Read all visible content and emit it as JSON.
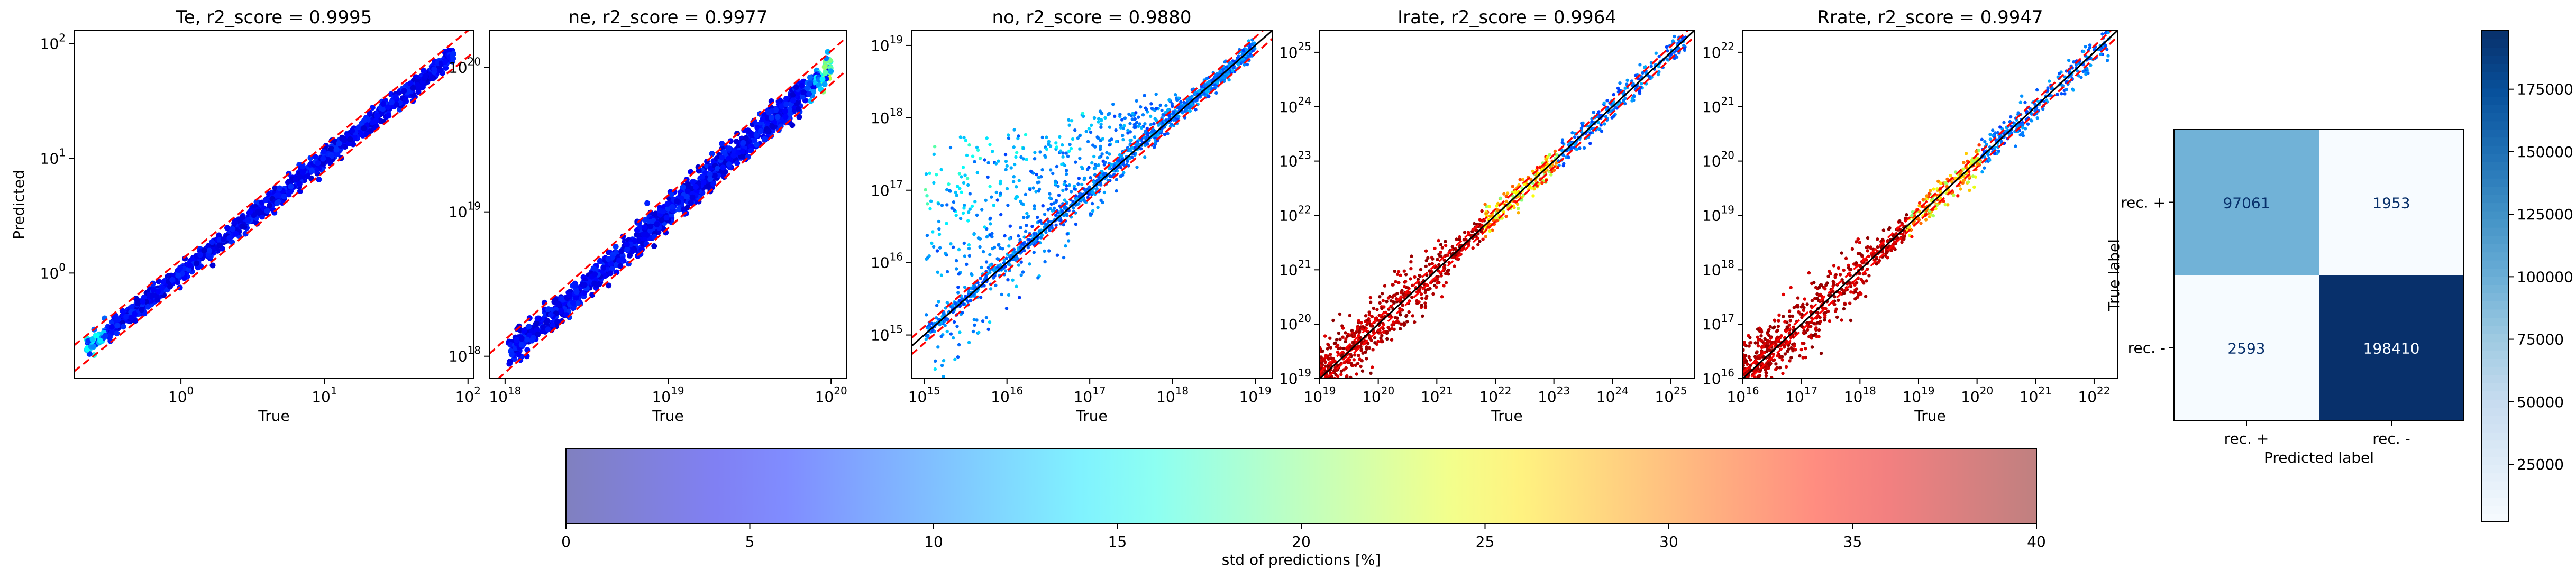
{
  "chart_data": [
    {
      "type": "scatter",
      "title": "Te, r2_score = 0.9995",
      "xlabel": "True",
      "ylabel": "Predicted",
      "xscale": "log",
      "yscale": "log",
      "xlim": [
        0.18,
        110
      ],
      "ylim": [
        0.12,
        130
      ],
      "xticks": [
        {
          "v": 1,
          "m": "0"
        },
        {
          "v": 10,
          "m": "1"
        },
        {
          "v": 100,
          "m": "2"
        }
      ],
      "yticks": [
        {
          "v": 1,
          "m": "0"
        },
        {
          "v": 10,
          "m": "1"
        },
        {
          "v": 100,
          "m": "2"
        }
      ],
      "data_range": [
        0.22,
        80
      ],
      "spread": 0.04,
      "color_profile": "low",
      "bands": {
        "factor": 1.3,
        "color": "#ff0000"
      },
      "identity_line": false,
      "grid": false
    },
    {
      "type": "scatter",
      "title": "ne, r2_score = 0.9977",
      "xlabel": "True",
      "ylabel": "",
      "xscale": "log",
      "yscale": "log",
      "xlim": [
        8e+17,
        1.25e+20
      ],
      "ylim": [
        7e+17,
        1.8e+20
      ],
      "xticks": [
        {
          "v": 1e+18,
          "m": "18"
        },
        {
          "v": 1e+19,
          "m": "19"
        },
        {
          "v": 1e+20,
          "m": "20"
        }
      ],
      "yticks": [
        {
          "v": 1e+18,
          "m": "18"
        },
        {
          "v": 1e+19,
          "m": "19"
        },
        {
          "v": 1e+20,
          "m": "20"
        }
      ],
      "data_range": [
        1.05e+18,
        1e+20
      ],
      "spread": 0.05,
      "color_profile": "low_hi_end",
      "bands": {
        "factor": 1.3,
        "color": "#ff0000"
      },
      "identity_line": false,
      "grid": false
    },
    {
      "type": "scatter",
      "title": "no, r2_score = 0.9880",
      "xlabel": "True",
      "ylabel": "",
      "xscale": "log",
      "yscale": "log",
      "xlim": [
        700000000000000.0,
        1.6e+19
      ],
      "ylim": [
        250000000000000.0,
        1.6e+19
      ],
      "xticks": [
        {
          "v": 1000000000000000.0,
          "m": "15"
        },
        {
          "v": 1e+16,
          "m": "16"
        },
        {
          "v": 1e+17,
          "m": "17"
        },
        {
          "v": 1e+18,
          "m": "18"
        },
        {
          "v": 1e+19,
          "m": "19"
        }
      ],
      "yticks": [
        {
          "v": 1000000000000000.0,
          "m": "15"
        },
        {
          "v": 1e+16,
          "m": "16"
        },
        {
          "v": 1e+17,
          "m": "17"
        },
        {
          "v": 1e+18,
          "m": "18"
        },
        {
          "v": 1e+19,
          "m": "19"
        }
      ],
      "data_range": [
        1000000000000000.0,
        1e+19
      ],
      "spread": 0.15,
      "color_profile": "mid",
      "bands": {
        "factor": 1.3,
        "color": "#ff0000"
      },
      "identity_line": true,
      "grid": false
    },
    {
      "type": "scatter",
      "title": "Irate, r2_score = 0.9964",
      "xlabel": "True",
      "ylabel": "",
      "xscale": "log",
      "yscale": "log",
      "xlim": [
        1e+19,
        2.5e+25
      ],
      "ylim": [
        1e+19,
        2.5e+25
      ],
      "xticks": [
        {
          "v": 1e+19,
          "m": "19"
        },
        {
          "v": 1e+20,
          "m": "20"
        },
        {
          "v": 1e+21,
          "m": "21"
        },
        {
          "v": 1e+22,
          "m": "22"
        },
        {
          "v": 1e+23,
          "m": "23"
        },
        {
          "v": 1e+24,
          "m": "24"
        },
        {
          "v": 1e+25,
          "m": "25"
        }
      ],
      "yticks": [
        {
          "v": 1e+19,
          "m": "19"
        },
        {
          "v": 1e+20,
          "m": "20"
        },
        {
          "v": 1e+21,
          "m": "21"
        },
        {
          "v": 1e+22,
          "m": "22"
        },
        {
          "v": 1e+23,
          "m": "23"
        },
        {
          "v": 1e+24,
          "m": "24"
        },
        {
          "v": 1e+25,
          "m": "25"
        }
      ],
      "data_range": [
        1e+19,
        1.8e+25
      ],
      "spread": 0.12,
      "color_profile": "high_low",
      "bands": {
        "factor": 1.3,
        "color": "#ff0000"
      },
      "identity_line": true,
      "grid": false
    },
    {
      "type": "scatter",
      "title": "Rrate, r2_score = 0.9947",
      "xlabel": "True",
      "ylabel": "",
      "xscale": "log",
      "yscale": "log",
      "xlim": [
        1e+16,
        2.5e+22
      ],
      "ylim": [
        1e+16,
        2.5e+22
      ],
      "xticks": [
        {
          "v": 1e+16,
          "m": "16"
        },
        {
          "v": 1e+17,
          "m": "17"
        },
        {
          "v": 1e+18,
          "m": "18"
        },
        {
          "v": 1e+19,
          "m": "19"
        },
        {
          "v": 1e+20,
          "m": "20"
        },
        {
          "v": 1e+21,
          "m": "21"
        },
        {
          "v": 1e+22,
          "m": "22"
        }
      ],
      "yticks": [
        {
          "v": 1e+16,
          "m": "16"
        },
        {
          "v": 1e+17,
          "m": "17"
        },
        {
          "v": 1e+18,
          "m": "18"
        },
        {
          "v": 1e+19,
          "m": "19"
        },
        {
          "v": 1e+20,
          "m": "20"
        },
        {
          "v": 1e+21,
          "m": "21"
        },
        {
          "v": 1e+22,
          "m": "22"
        }
      ],
      "data_range": [
        1e+16,
        1.8e+22
      ],
      "spread": 0.14,
      "color_profile": "high_low",
      "bands": {
        "factor": 1.3,
        "color": "#ff0000"
      },
      "identity_line": true,
      "grid": false
    },
    {
      "type": "heatmap",
      "title": "",
      "xlabel": "Predicted label",
      "ylabel": "True label",
      "x_categories": [
        "rec. +",
        "rec. -"
      ],
      "y_categories": [
        "rec. +",
        "rec. -"
      ],
      "values": [
        [
          97061,
          1953
        ],
        [
          2593,
          198410
        ]
      ],
      "colormap": "Blues",
      "colorbar": {
        "min": 1953,
        "max": 198410,
        "ticks": [
          25000,
          50000,
          75000,
          100000,
          125000,
          150000,
          175000
        ]
      }
    },
    {
      "type": "colorbar",
      "label": "std of predictions [%]",
      "range": [
        0,
        40
      ],
      "ticks": [
        0,
        5,
        10,
        15,
        20,
        25,
        30,
        35,
        40
      ],
      "colormap": "jet",
      "alpha": 0.5
    }
  ]
}
